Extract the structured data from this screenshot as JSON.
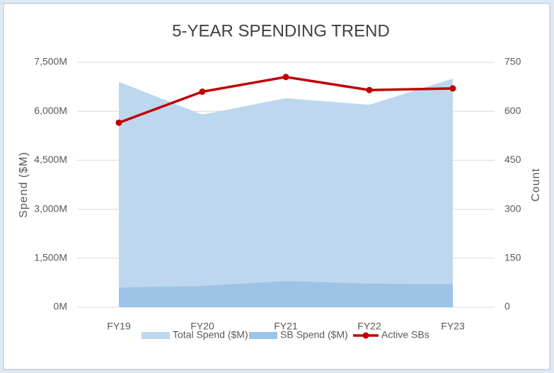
{
  "chart_data": {
    "type": "area-line",
    "title": "5-YEAR SPENDING TREND",
    "y_label": "Spend ($M)",
    "y2_label": "Count",
    "categories": [
      "FY19",
      "FY20",
      "FY21",
      "FY22",
      "FY23"
    ],
    "series": [
      {
        "name": "Total Spend ($M)",
        "color": "#bdd7ee",
        "kind": "area",
        "values": [
          6900,
          5900,
          6400,
          6200,
          7000
        ]
      },
      {
        "name": "SB Spend ($M)",
        "color": "#9dc3e6",
        "kind": "area",
        "values": [
          600,
          650,
          800,
          720,
          700
        ]
      },
      {
        "name": "Active SBs",
        "color": "#c00000",
        "kind": "line",
        "axis": "y2",
        "values": [
          565,
          660,
          705,
          665,
          670
        ]
      }
    ],
    "ylim": [
      0,
      7500
    ],
    "yticks": [
      {
        "value": 0,
        "label": "0M"
      },
      {
        "value": 1500,
        "label": "1,500M"
      },
      {
        "value": 3000,
        "label": "3,000M"
      },
      {
        "value": 4500,
        "label": "4,500M"
      },
      {
        "value": 6000,
        "label": "6,000M"
      },
      {
        "value": 7500,
        "label": "7,500M"
      }
    ],
    "y2lim": [
      0,
      750
    ],
    "y2ticks": [
      0,
      150,
      300,
      450,
      600,
      750
    ],
    "grid": true,
    "legend": "bottom"
  }
}
